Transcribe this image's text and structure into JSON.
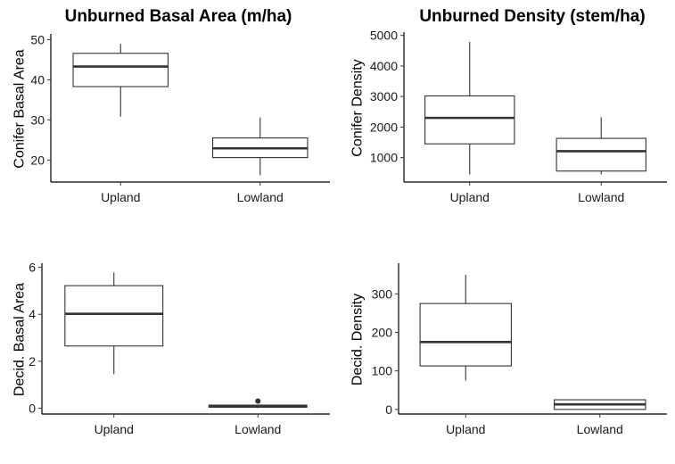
{
  "chart_data": [
    {
      "type": "box",
      "title": "Unburned Basal Area (m/ha)",
      "ylabel": "Conifer Basal Area",
      "categories": [
        "Upland",
        "Lowland"
      ],
      "ylim": [
        14.5,
        51
      ],
      "yticks": [
        20,
        30,
        40,
        50
      ],
      "boxes": [
        {
          "category": "Upland",
          "whisker_low": 30.8,
          "q1": 38.3,
          "median": 43.3,
          "q3": 46.6,
          "whisker_high": 49,
          "outliers": []
        },
        {
          "category": "Lowland",
          "whisker_low": 16.2,
          "q1": 20.6,
          "median": 22.9,
          "q3": 25.5,
          "whisker_high": 30.6,
          "outliers": []
        }
      ]
    },
    {
      "type": "box",
      "title": "Unburned Density (stem/ha)",
      "ylabel": "Conifer Density",
      "categories": [
        "Upland",
        "Lowland"
      ],
      "ylim": [
        200,
        5050
      ],
      "yticks": [
        1000,
        2000,
        3000,
        4000,
        5000
      ],
      "boxes": [
        {
          "category": "Upland",
          "whisker_low": 450,
          "q1": 1450,
          "median": 2300,
          "q3": 3020,
          "whisker_high": 4790,
          "outliers": []
        },
        {
          "category": "Lowland",
          "whisker_low": 450,
          "q1": 560,
          "median": 1210,
          "q3": 1630,
          "whisker_high": 2320,
          "outliers": []
        }
      ]
    },
    {
      "type": "box",
      "title": "",
      "ylabel": "Decid. Basal Area",
      "categories": [
        "Upland",
        "Lowland"
      ],
      "ylim": [
        -0.25,
        6.1
      ],
      "yticks": [
        0,
        2,
        4,
        6
      ],
      "boxes": [
        {
          "category": "Upland",
          "whisker_low": 1.45,
          "q1": 2.65,
          "median": 4.02,
          "q3": 5.22,
          "whisker_high": 5.78,
          "outliers": []
        },
        {
          "category": "Lowland",
          "whisker_low": 0,
          "q1": 0.04,
          "median": 0.08,
          "q3": 0.13,
          "whisker_high": 0.15,
          "outliers": [
            0.3
          ]
        }
      ]
    },
    {
      "type": "box",
      "title": "",
      "ylabel": "Decid. Density",
      "categories": [
        "Upland",
        "Lowland"
      ],
      "ylim": [
        -12,
        375
      ],
      "yticks": [
        0,
        100,
        200,
        300
      ],
      "boxes": [
        {
          "category": "Upland",
          "whisker_low": 75,
          "q1": 113,
          "median": 175,
          "q3": 275,
          "whisker_high": 350,
          "outliers": []
        },
        {
          "category": "Lowland",
          "whisker_low": 0,
          "q1": 0,
          "median": 13,
          "q3": 25,
          "whisker_high": 25,
          "outliers": []
        }
      ]
    }
  ]
}
